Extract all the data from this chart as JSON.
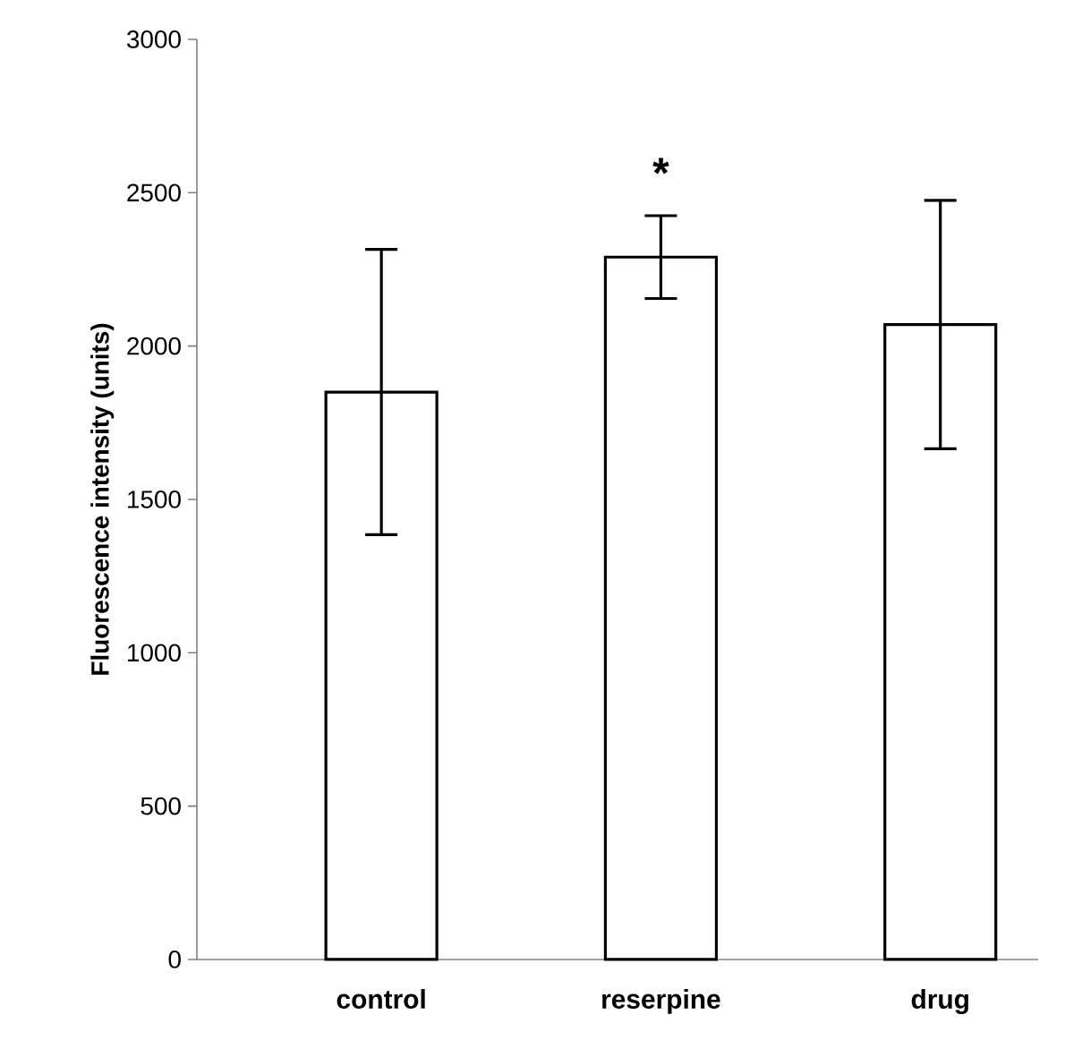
{
  "chart_data": {
    "type": "bar",
    "ylabel": "Fluorescence intensity (units)",
    "categories": [
      "control",
      "reserpine",
      "drug"
    ],
    "values": [
      1850,
      2290,
      2070
    ],
    "errors": [
      465,
      135,
      405
    ],
    "color": "#ffffff",
    "ylim": [
      0,
      3000
    ],
    "yticks": [
      0,
      500,
      1000,
      1500,
      2000,
      2500,
      3000
    ],
    "annotations": [
      "*"
    ]
  }
}
